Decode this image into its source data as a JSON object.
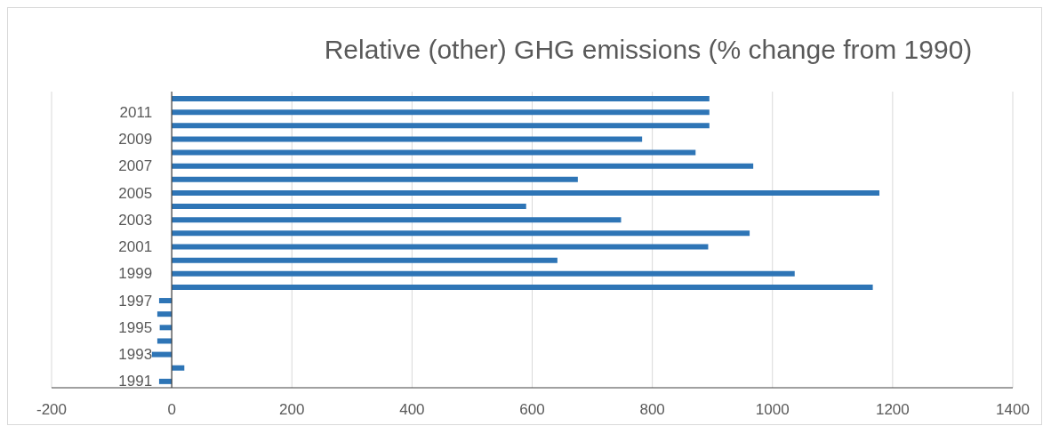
{
  "chart_data": {
    "type": "bar",
    "orientation": "horizontal",
    "title": "Relative (other) GHG emissions (% change from 1990)",
    "categories": [
      null,
      "2011",
      null,
      "2009",
      null,
      "2007",
      null,
      "2005",
      null,
      "2003",
      null,
      "2001",
      null,
      "1999",
      null,
      "1997",
      null,
      "1995",
      null,
      "1993",
      null,
      "1991"
    ],
    "values": [
      895,
      895,
      895,
      783,
      872,
      968,
      676,
      1178,
      590,
      748,
      962,
      893,
      642,
      1037,
      1167,
      -21,
      -24,
      -20,
      -24,
      -33,
      21,
      -21
    ],
    "color": "#2e75b6",
    "xlim": [
      -200,
      1400
    ],
    "xticks": [
      -200,
      0,
      200,
      400,
      600,
      800,
      1000,
      1200,
      1400
    ],
    "grid": "x"
  }
}
